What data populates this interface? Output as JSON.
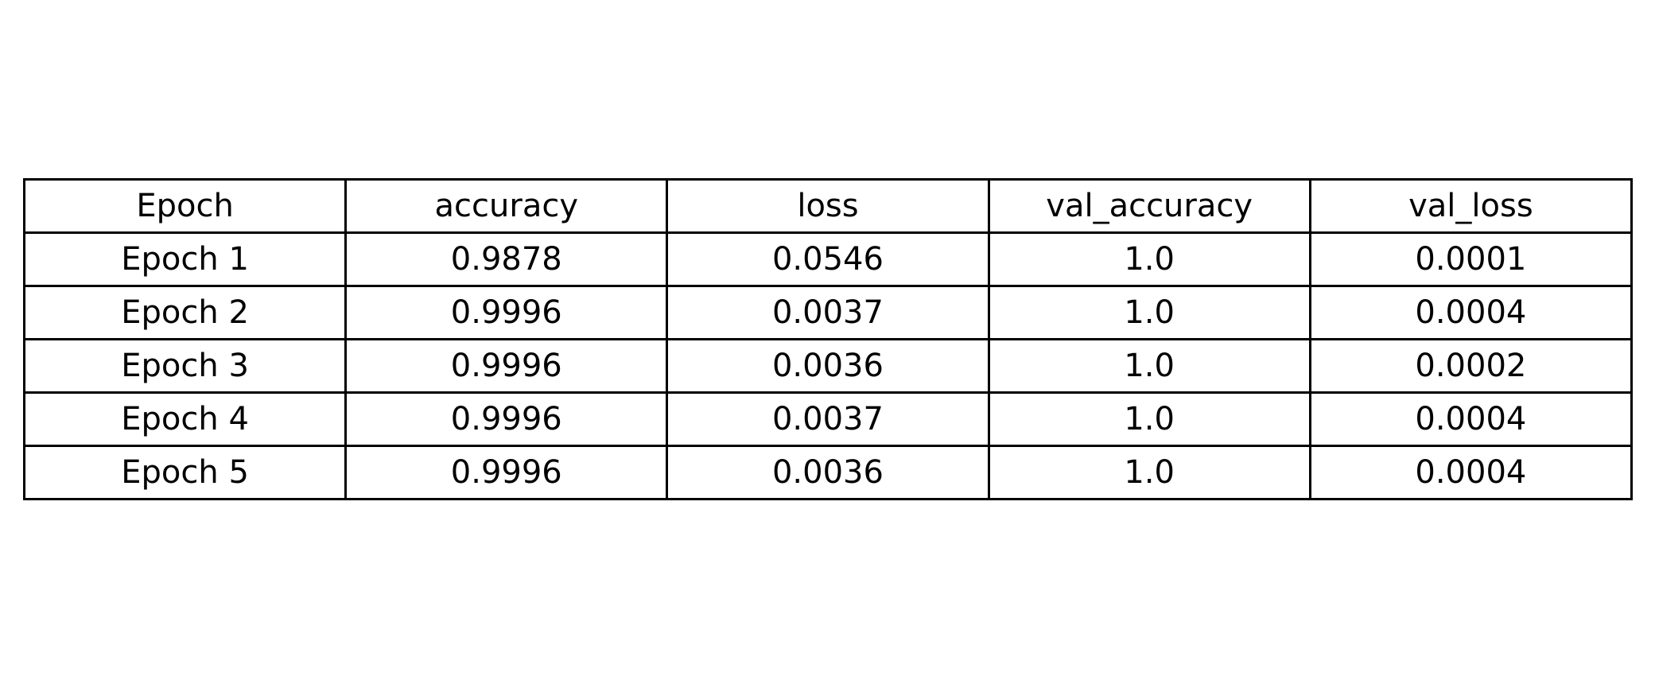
{
  "chart_data": {
    "type": "table",
    "columns": [
      "Epoch",
      "accuracy",
      "loss",
      "val_accuracy",
      "val_loss"
    ],
    "rows": [
      [
        "Epoch 1",
        "0.9878",
        "0.0546",
        "1.0",
        "0.0001"
      ],
      [
        "Epoch 2",
        "0.9996",
        "0.0037",
        "1.0",
        "0.0004"
      ],
      [
        "Epoch 3",
        "0.9996",
        "0.0036",
        "1.0",
        "0.0002"
      ],
      [
        "Epoch 4",
        "0.9996",
        "0.0037",
        "1.0",
        "0.0004"
      ],
      [
        "Epoch 5",
        "0.9996",
        "0.0036",
        "1.0",
        "0.0004"
      ]
    ]
  }
}
